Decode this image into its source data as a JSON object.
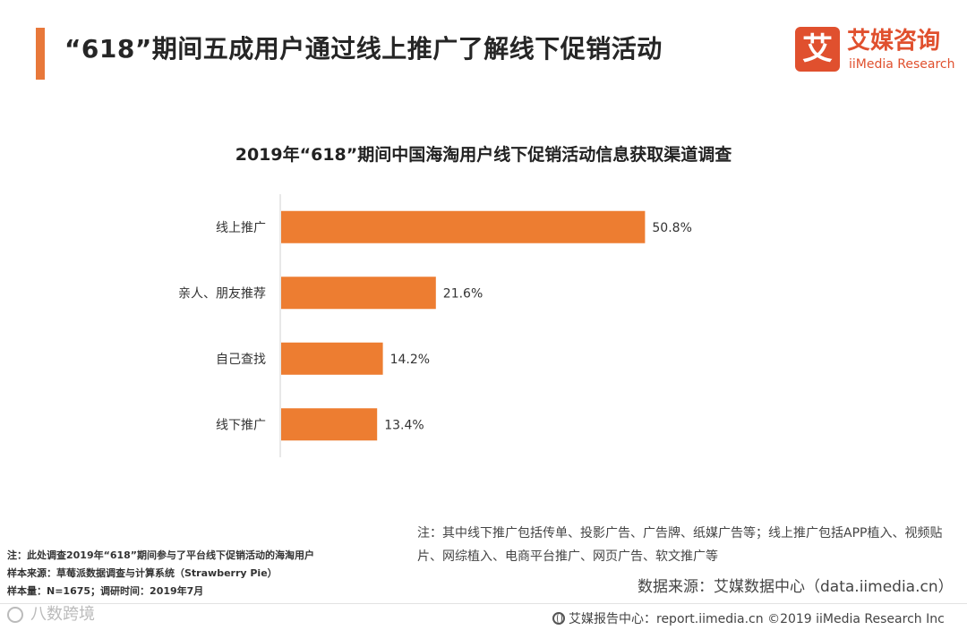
{
  "header": {
    "title": "“618”期间五成用户通过线上推广了解线下促销活动",
    "accent_color": "#E8783A"
  },
  "logo": {
    "mark": "艾",
    "name_cn": "艾媒咨询",
    "name_en": "iiMedia Research",
    "color": "#E0502E"
  },
  "chart_data": {
    "type": "bar",
    "orientation": "horizontal",
    "title": "2019年“618”期间中国海淘用户线下促销活动信息获取渠道调查",
    "categories": [
      "线上推广",
      "亲人、朋友推荐",
      "自己查找",
      "线下推广"
    ],
    "values": [
      50.8,
      21.6,
      14.2,
      13.4
    ],
    "value_labels": [
      "50.8%",
      "21.6%",
      "14.2%",
      "13.4%"
    ],
    "unit": "%",
    "xlim": [
      0,
      100
    ],
    "grid": false,
    "bar_color": "#ED7D31"
  },
  "notes": {
    "right_note": "注：其中线下推广包括传单、投影广告、广告牌、纸媒广告等；线上推广包括APP植入、视频贴片、网综植入、电商平台推广、网页广告、软文推广等",
    "data_source": "数据来源：艾媒数据中心（data.iimedia.cn）",
    "left_note_1": "注：此处调查2019年“618”期间参与了平台线下促销活动的海淘用户",
    "left_note_2": "样本来源：草莓派数据调查与计算系统（Strawberry  Pie）",
    "left_note_3": "样本量：N=1675；调研时间：2019年7月"
  },
  "watermark": "八数跨境",
  "footer": {
    "text": "艾媒报告中心：report.iimedia.cn  ©2019  iiMedia Research  Inc"
  }
}
